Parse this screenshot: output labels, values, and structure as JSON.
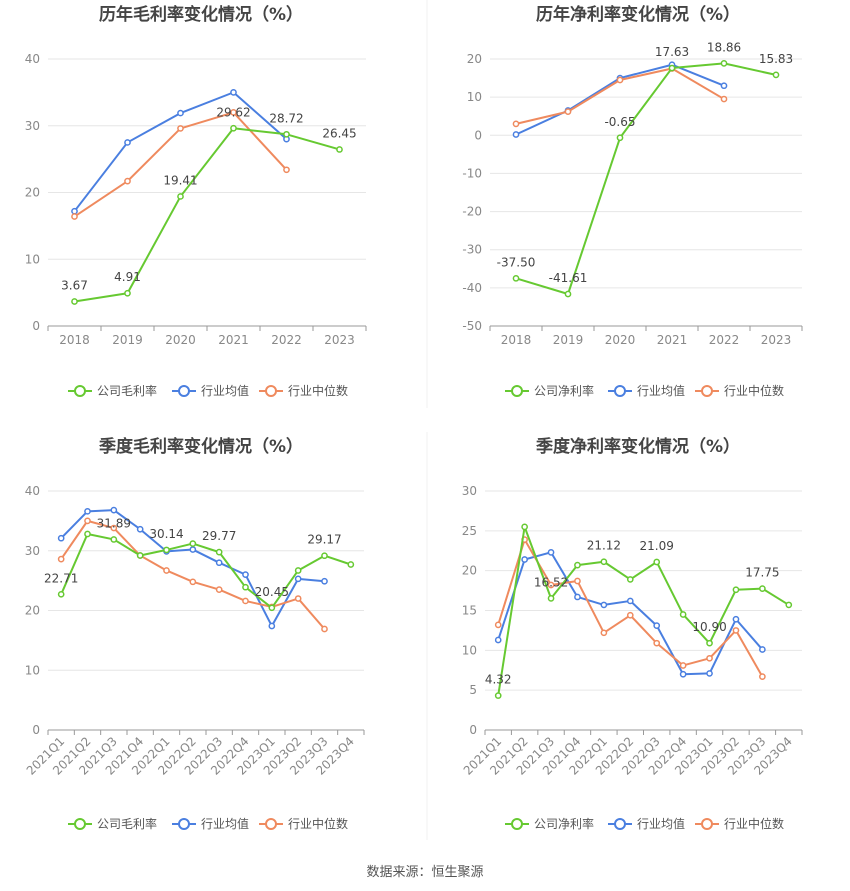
{
  "source_text": "数据来源：恒生聚源",
  "colors": {
    "company": "#66c931",
    "industry_avg": "#4a7fe0",
    "industry_median": "#ef8a5e"
  },
  "chart_data": [
    {
      "type": "line",
      "title": "历年毛利率变化情况（%）",
      "categories": [
        "2018",
        "2019",
        "2020",
        "2021",
        "2022",
        "2023"
      ],
      "ylim": [
        0,
        40
      ],
      "yticks": [
        0,
        10,
        20,
        30,
        40
      ],
      "legend": "bottom",
      "grid": true,
      "series": [
        {
          "name": "公司毛利率",
          "key": "company",
          "values": [
            3.67,
            4.91,
            19.41,
            29.62,
            28.72,
            26.45
          ],
          "labels": [
            "3.67",
            "4.91",
            "19.41",
            "29.62",
            "28.72",
            "26.45"
          ]
        },
        {
          "name": "行业均值",
          "key": "industry_avg",
          "values": [
            17.2,
            27.5,
            31.9,
            35.0,
            28.0,
            null
          ]
        },
        {
          "name": "行业中位数",
          "key": "industry_median",
          "values": [
            16.4,
            21.7,
            29.6,
            32.0,
            23.4,
            null
          ]
        }
      ]
    },
    {
      "type": "line",
      "title": "历年净利率变化情况（%）",
      "categories": [
        "2018",
        "2019",
        "2020",
        "2021",
        "2022",
        "2023"
      ],
      "ylim": [
        -50,
        20
      ],
      "yticks": [
        -50,
        -40,
        -30,
        -20,
        -10,
        0,
        10,
        20
      ],
      "legend": "bottom",
      "grid": true,
      "series": [
        {
          "name": "公司净利率",
          "key": "company",
          "values": [
            -37.5,
            -41.61,
            -0.65,
            17.63,
            18.86,
            15.83
          ],
          "labels": [
            "-37.50",
            "-41.61",
            "-0.65",
            "17.63",
            "18.86",
            "15.83"
          ]
        },
        {
          "name": "行业均值",
          "key": "industry_avg",
          "values": [
            0.2,
            6.5,
            15.0,
            18.5,
            13.0,
            null
          ]
        },
        {
          "name": "行业中位数",
          "key": "industry_median",
          "values": [
            3.0,
            6.2,
            14.5,
            17.5,
            9.5,
            null
          ]
        }
      ]
    },
    {
      "type": "line",
      "title": "季度毛利率变化情况（%）",
      "categories": [
        "2021Q1",
        "2021Q2",
        "2021Q3",
        "2021Q4",
        "2022Q1",
        "2022Q2",
        "2022Q3",
        "2022Q4",
        "2023Q1",
        "2023Q2",
        "2023Q3",
        "2023Q4"
      ],
      "ylim": [
        0,
        40
      ],
      "yticks": [
        0,
        10,
        20,
        30,
        40
      ],
      "legend": "bottom",
      "grid": true,
      "series": [
        {
          "name": "公司毛利率",
          "key": "company",
          "values": [
            22.71,
            32.8,
            31.89,
            29.2,
            30.14,
            31.2,
            29.77,
            23.9,
            20.45,
            26.7,
            29.17,
            27.7
          ],
          "labels": [
            "22.71",
            "",
            "31.89",
            "",
            "30.14",
            "",
            "29.77",
            "",
            "20.45",
            "",
            "29.17",
            ""
          ]
        },
        {
          "name": "行业均值",
          "key": "industry_avg",
          "values": [
            32.1,
            36.6,
            36.8,
            33.6,
            29.9,
            30.2,
            28.0,
            26.0,
            17.4,
            25.3,
            24.9,
            null
          ]
        },
        {
          "name": "行业中位数",
          "key": "industry_median",
          "values": [
            28.6,
            35.0,
            33.8,
            29.2,
            26.7,
            24.8,
            23.5,
            21.6,
            20.6,
            22.0,
            16.9,
            null
          ]
        }
      ]
    },
    {
      "type": "line",
      "title": "季度净利率变化情况（%）",
      "categories": [
        "2021Q1",
        "2021Q2",
        "2021Q3",
        "2021Q4",
        "2022Q1",
        "2022Q2",
        "2022Q3",
        "2022Q4",
        "2023Q1",
        "2023Q2",
        "2023Q3",
        "2023Q4"
      ],
      "ylim": [
        0,
        30
      ],
      "yticks": [
        0,
        5,
        10,
        15,
        20,
        25,
        30
      ],
      "legend": "bottom",
      "grid": true,
      "series": [
        {
          "name": "公司净利率",
          "key": "company",
          "values": [
            4.32,
            25.5,
            16.52,
            20.7,
            21.12,
            18.9,
            21.09,
            14.5,
            10.9,
            17.6,
            17.75,
            15.7
          ],
          "labels": [
            "4.32",
            "",
            "16.52",
            "",
            "21.12",
            "",
            "21.09",
            "",
            "10.90",
            "",
            "17.75",
            ""
          ]
        },
        {
          "name": "行业均值",
          "key": "industry_avg",
          "values": [
            11.3,
            21.4,
            22.3,
            16.7,
            15.7,
            16.2,
            13.1,
            7.0,
            7.1,
            13.9,
            10.1,
            null
          ]
        },
        {
          "name": "行业中位数",
          "key": "industry_median",
          "values": [
            13.2,
            23.9,
            18.2,
            18.7,
            12.2,
            14.4,
            10.9,
            8.1,
            9.0,
            12.5,
            6.7,
            null
          ]
        }
      ]
    }
  ]
}
